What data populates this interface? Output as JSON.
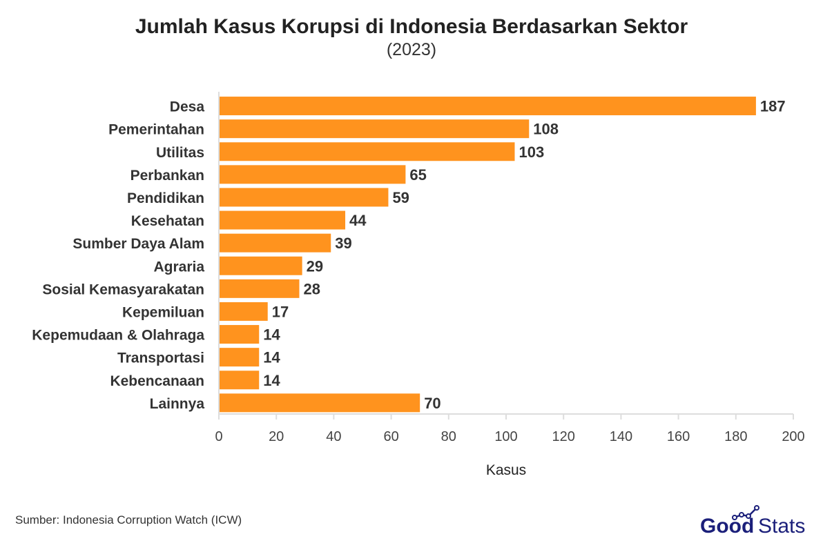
{
  "chart_data": {
    "type": "bar",
    "orientation": "horizontal",
    "title": "Jumlah Kasus Korupsi di Indonesia Berdasarkan Sektor",
    "subtitle": "(2023)",
    "xlabel": "Kasus",
    "ylabel": "",
    "xlim": [
      0,
      200
    ],
    "xticks": [
      0,
      20,
      40,
      60,
      80,
      100,
      120,
      140,
      160,
      180,
      200
    ],
    "grid": false,
    "categories": [
      "Desa",
      "Pemerintahan",
      "Utilitas",
      "Perbankan",
      "Pendidikan",
      "Kesehatan",
      "Sumber Daya Alam",
      "Agraria",
      "Sosial Kemasyarakatan",
      "Kepemiluan",
      "Kepemudaan & Olahraga",
      "Transportasi",
      "Kebencanaan",
      "Lainnya"
    ],
    "values": [
      187,
      108,
      103,
      65,
      59,
      44,
      39,
      29,
      28,
      17,
      14,
      14,
      14,
      70
    ],
    "bar_color": "#FF931E"
  },
  "footer": {
    "source": "Sumber: Indonesia Corruption Watch (ICW)",
    "brand_good": "Good",
    "brand_stats": "Stats",
    "brand_color": "#1B1F7A"
  }
}
